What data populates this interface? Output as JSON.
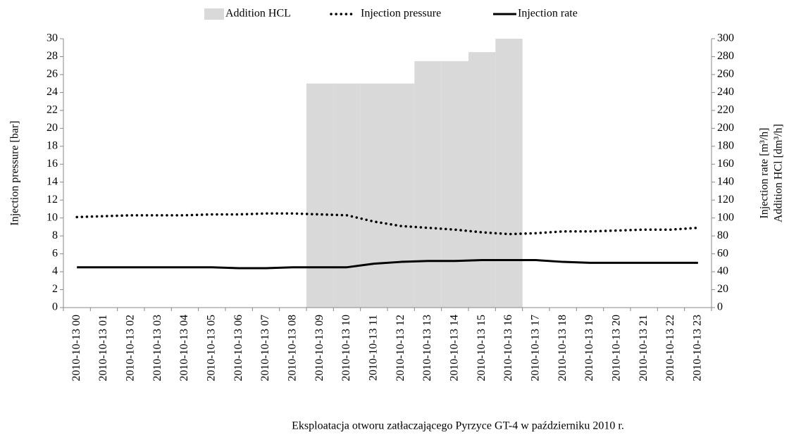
{
  "chart_data": {
    "type": "bar-line",
    "x_label": "Eksploatacja otworu zatłaczającego Pyrzyce GT-4 w październiku 2010 r.",
    "y_label": "Injection pressure [bar]",
    "y2_label": [
      "Injection rate [m³/h]",
      "Addition HCl [dm³/h]"
    ],
    "categories": [
      "2010-10-13 00",
      "2010-10-13 01",
      "2010-10-13 02",
      "2010-10-13 03",
      "2010-10-13 04",
      "2010-10-13 05",
      "2010-10-13 06",
      "2010-10-13 07",
      "2010-10-13 08",
      "2010-10-13 09",
      "2010-10-13 10",
      "2010-10-13 11",
      "2010-10-13 12",
      "2010-10-13 13",
      "2010-10-13 14",
      "2010-10-13 15",
      "2010-10-13 16",
      "2010-10-13 17",
      "2010-10-13 18",
      "2010-10-13 19",
      "2010-10-13 20",
      "2010-10-13 21",
      "2010-10-13 22",
      "2010-10-13 23"
    ],
    "series": [
      {
        "name": "Addition HCL",
        "type": "bar",
        "axis": "y2",
        "color": "#d9d9d9",
        "values": [
          0,
          0,
          0,
          0,
          0,
          0,
          0,
          0,
          0,
          250,
          250,
          250,
          250,
          275,
          275,
          285,
          300,
          0,
          0,
          0,
          0,
          0,
          0,
          0
        ]
      },
      {
        "name": "Injection pressure",
        "type": "line",
        "axis": "y",
        "color": "#000000",
        "line_style": "dotted",
        "values": [
          10.1,
          10.2,
          10.3,
          10.3,
          10.3,
          10.4,
          10.4,
          10.5,
          10.5,
          10.4,
          10.3,
          9.6,
          9.1,
          8.9,
          8.7,
          8.4,
          8.2,
          8.3,
          8.5,
          8.5,
          8.6,
          8.7,
          8.7,
          8.9
        ]
      },
      {
        "name": "Injection rate",
        "type": "line",
        "axis": "y2",
        "color": "#000000",
        "line_style": "solid",
        "values": [
          45,
          45,
          45,
          45,
          45,
          45,
          44,
          44,
          45,
          45,
          45,
          49,
          51,
          52,
          52,
          53,
          53,
          53,
          51,
          50,
          50,
          50,
          50,
          50
        ]
      }
    ],
    "ylim": [
      0,
      30
    ],
    "yticks": [
      0,
      2,
      4,
      6,
      8,
      10,
      12,
      14,
      16,
      18,
      20,
      22,
      24,
      26,
      28,
      30
    ],
    "y2lim": [
      0,
      300
    ],
    "y2ticks": [
      0,
      20,
      40,
      60,
      80,
      100,
      120,
      140,
      160,
      180,
      200,
      220,
      240,
      260,
      280,
      300
    ],
    "legend": "top",
    "grid": false
  }
}
